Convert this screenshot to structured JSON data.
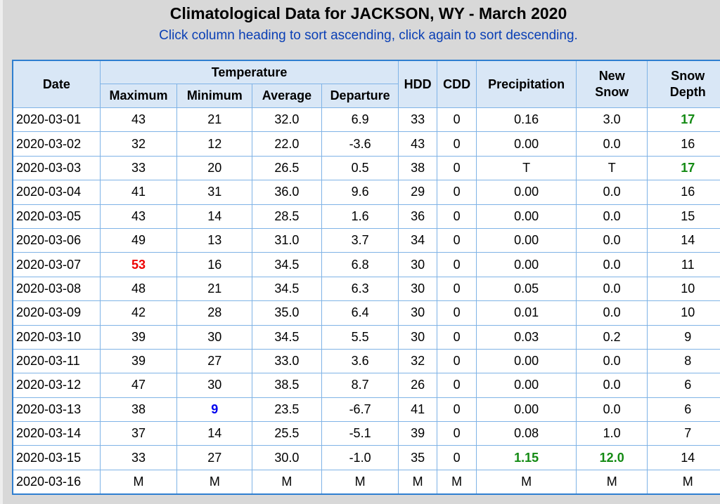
{
  "page": {
    "title": "Climatological Data for JACKSON, WY - March 2020",
    "subtitle": "Click column heading to sort ascending, click again to sort descending."
  },
  "headers": {
    "date": "Date",
    "temperature": "Temperature",
    "maximum": "Maximum",
    "minimum": "Minimum",
    "average": "Average",
    "departure": "Departure",
    "hdd": "HDD",
    "cdd": "CDD",
    "precipitation": "Precipitation",
    "new_snow_line1": "New",
    "new_snow_line2": "Snow",
    "snow_depth_line1": "Snow",
    "snow_depth_line2": "Depth"
  },
  "rows": [
    {
      "date": "2020-03-01",
      "max": "43",
      "min": "21",
      "avg": "32.0",
      "dep": "6.9",
      "hdd": "33",
      "cdd": "0",
      "precip": "0.16",
      "new_snow": "3.0",
      "snow_depth": "17"
    },
    {
      "date": "2020-03-02",
      "max": "32",
      "min": "12",
      "avg": "22.0",
      "dep": "-3.6",
      "hdd": "43",
      "cdd": "0",
      "precip": "0.00",
      "new_snow": "0.0",
      "snow_depth": "16"
    },
    {
      "date": "2020-03-03",
      "max": "33",
      "min": "20",
      "avg": "26.5",
      "dep": "0.5",
      "hdd": "38",
      "cdd": "0",
      "precip": "T",
      "new_snow": "T",
      "snow_depth": "17"
    },
    {
      "date": "2020-03-04",
      "max": "41",
      "min": "31",
      "avg": "36.0",
      "dep": "9.6",
      "hdd": "29",
      "cdd": "0",
      "precip": "0.00",
      "new_snow": "0.0",
      "snow_depth": "16"
    },
    {
      "date": "2020-03-05",
      "max": "43",
      "min": "14",
      "avg": "28.5",
      "dep": "1.6",
      "hdd": "36",
      "cdd": "0",
      "precip": "0.00",
      "new_snow": "0.0",
      "snow_depth": "15"
    },
    {
      "date": "2020-03-06",
      "max": "49",
      "min": "13",
      "avg": "31.0",
      "dep": "3.7",
      "hdd": "34",
      "cdd": "0",
      "precip": "0.00",
      "new_snow": "0.0",
      "snow_depth": "14"
    },
    {
      "date": "2020-03-07",
      "max": "53",
      "min": "16",
      "avg": "34.5",
      "dep": "6.8",
      "hdd": "30",
      "cdd": "0",
      "precip": "0.00",
      "new_snow": "0.0",
      "snow_depth": "11"
    },
    {
      "date": "2020-03-08",
      "max": "48",
      "min": "21",
      "avg": "34.5",
      "dep": "6.3",
      "hdd": "30",
      "cdd": "0",
      "precip": "0.05",
      "new_snow": "0.0",
      "snow_depth": "10"
    },
    {
      "date": "2020-03-09",
      "max": "42",
      "min": "28",
      "avg": "35.0",
      "dep": "6.4",
      "hdd": "30",
      "cdd": "0",
      "precip": "0.01",
      "new_snow": "0.0",
      "snow_depth": "10"
    },
    {
      "date": "2020-03-10",
      "max": "39",
      "min": "30",
      "avg": "34.5",
      "dep": "5.5",
      "hdd": "30",
      "cdd": "0",
      "precip": "0.03",
      "new_snow": "0.2",
      "snow_depth": "9"
    },
    {
      "date": "2020-03-11",
      "max": "39",
      "min": "27",
      "avg": "33.0",
      "dep": "3.6",
      "hdd": "32",
      "cdd": "0",
      "precip": "0.00",
      "new_snow": "0.0",
      "snow_depth": "8"
    },
    {
      "date": "2020-03-12",
      "max": "47",
      "min": "30",
      "avg": "38.5",
      "dep": "8.7",
      "hdd": "26",
      "cdd": "0",
      "precip": "0.00",
      "new_snow": "0.0",
      "snow_depth": "6"
    },
    {
      "date": "2020-03-13",
      "max": "38",
      "min": "9",
      "avg": "23.5",
      "dep": "-6.7",
      "hdd": "41",
      "cdd": "0",
      "precip": "0.00",
      "new_snow": "0.0",
      "snow_depth": "6"
    },
    {
      "date": "2020-03-14",
      "max": "37",
      "min": "14",
      "avg": "25.5",
      "dep": "-5.1",
      "hdd": "39",
      "cdd": "0",
      "precip": "0.08",
      "new_snow": "1.0",
      "snow_depth": "7"
    },
    {
      "date": "2020-03-15",
      "max": "33",
      "min": "27",
      "avg": "30.0",
      "dep": "-1.0",
      "hdd": "35",
      "cdd": "0",
      "precip": "1.15",
      "new_snow": "12.0",
      "snow_depth": "14"
    },
    {
      "date": "2020-03-16",
      "max": "M",
      "min": "M",
      "avg": "M",
      "dep": "M",
      "hdd": "M",
      "cdd": "M",
      "precip": "M",
      "new_snow": "M",
      "snow_depth": "M"
    }
  ],
  "highlights": [
    {
      "row": 0,
      "col": "snow_depth",
      "color": "green"
    },
    {
      "row": 2,
      "col": "snow_depth",
      "color": "green"
    },
    {
      "row": 6,
      "col": "max",
      "color": "red"
    },
    {
      "row": 12,
      "col": "min",
      "color": "blue"
    },
    {
      "row": 14,
      "col": "precip",
      "color": "green"
    },
    {
      "row": 14,
      "col": "new_snow",
      "color": "green"
    }
  ],
  "colors": {
    "red": "#ee0000",
    "blue": "#0000ee",
    "green": "#138a13",
    "header_bg": "#d9e7f6",
    "border": "#2f7fd0",
    "subtitle": "#0a3fb5"
  }
}
